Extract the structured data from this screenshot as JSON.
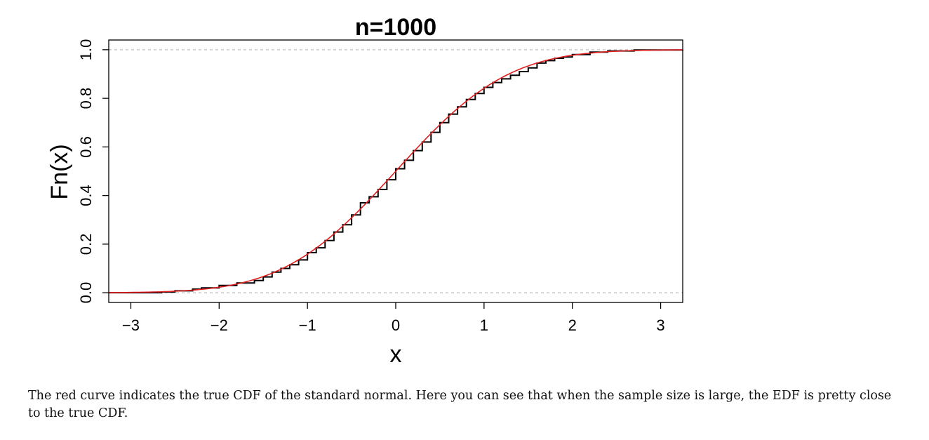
{
  "chart_data": {
    "type": "line",
    "title": "n=1000",
    "xlabel": "x",
    "ylabel": "Fn(x)",
    "xlim": [
      -3.25,
      3.25
    ],
    "ylim": [
      -0.04,
      1.04
    ],
    "x_ticks": [
      -3,
      -2,
      -1,
      0,
      1,
      2,
      3
    ],
    "x_tick_labels": [
      "−3",
      "−2",
      "−1",
      "0",
      "1",
      "2",
      "3"
    ],
    "y_ticks": [
      0,
      0.2,
      0.4,
      0.6,
      0.8,
      1
    ],
    "y_tick_labels": [
      "0.0",
      "0.2",
      "0.4",
      "0.6",
      "0.8",
      "1.0"
    ],
    "reference_lines_y": [
      0,
      1
    ],
    "reference_line_color": "#bdbdbd",
    "series": [
      {
        "color": "#000000",
        "style": "step",
        "x": [
          -3.25,
          -2.65,
          -2.5,
          -2.3,
          -2.2,
          -2.0,
          -1.8,
          -1.6,
          -1.5,
          -1.4,
          -1.3,
          -1.2,
          -1.1,
          -1.0,
          -0.9,
          -0.8,
          -0.7,
          -0.6,
          -0.5,
          -0.4,
          -0.3,
          -0.2,
          -0.1,
          0.0,
          0.1,
          0.2,
          0.3,
          0.4,
          0.5,
          0.6,
          0.7,
          0.8,
          0.9,
          1.0,
          1.1,
          1.2,
          1.3,
          1.4,
          1.5,
          1.6,
          1.7,
          1.8,
          1.9,
          2.0,
          2.2,
          2.4,
          2.7,
          3.25
        ],
        "y": [
          0.0,
          0.003,
          0.008,
          0.015,
          0.02,
          0.03,
          0.04,
          0.05,
          0.065,
          0.085,
          0.1,
          0.115,
          0.135,
          0.165,
          0.185,
          0.215,
          0.25,
          0.28,
          0.32,
          0.37,
          0.395,
          0.425,
          0.465,
          0.51,
          0.545,
          0.585,
          0.62,
          0.66,
          0.7,
          0.735,
          0.765,
          0.795,
          0.82,
          0.845,
          0.865,
          0.88,
          0.895,
          0.91,
          0.925,
          0.945,
          0.955,
          0.965,
          0.97,
          0.98,
          0.99,
          0.995,
          0.999,
          1.0
        ]
      },
      {
        "color": "#e02020",
        "style": "smooth",
        "function": "standard_normal_cdf"
      }
    ]
  },
  "caption": "The red curve indicates the true CDF of the standard normal. Here you can see that when the sample size is large, the EDF is pretty close to the true CDF."
}
